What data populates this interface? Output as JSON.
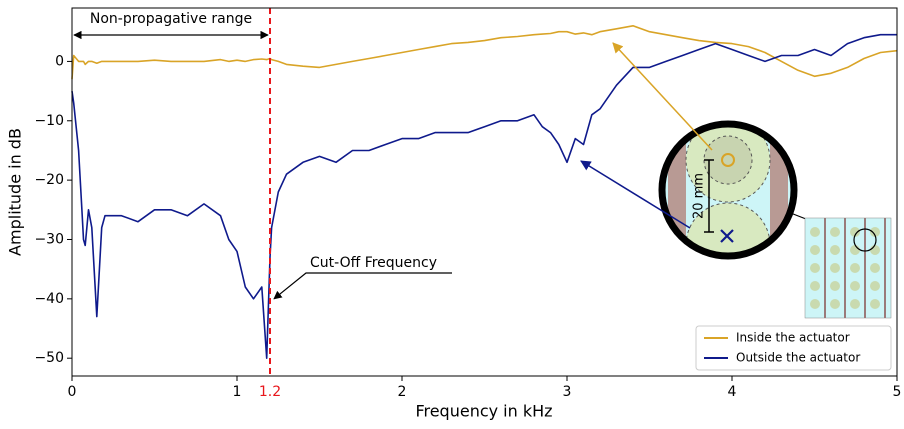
{
  "chart_data": {
    "type": "line",
    "x_label": "Frequency in kHz",
    "y_label": "Amplitude in dB",
    "xlim": [
      0,
      5
    ],
    "ylim": [
      -53,
      9
    ],
    "xticks": [
      0,
      1,
      2,
      3,
      4,
      5
    ],
    "yticks": [
      {
        "value": -50,
        "label": "−50"
      },
      {
        "value": -40,
        "label": "−40"
      },
      {
        "value": -30,
        "label": "−30"
      },
      {
        "value": -20,
        "label": "−20"
      },
      {
        "value": -10,
        "label": "−10"
      },
      0
    ],
    "cutoff": 1.2,
    "cutoff_color": "#e8161b",
    "annotations": [
      "Non-propagative range",
      "Cut-Off Frequency",
      "20 mm"
    ],
    "legend": "lower right",
    "x": [
      0,
      0.01,
      0.04,
      0.06,
      0.07,
      0.08,
      0.1,
      0.12,
      0.15,
      0.18,
      0.2,
      0.3,
      0.4,
      0.5,
      0.6,
      0.7,
      0.8,
      0.9,
      0.95,
      1.0,
      1.05,
      1.1,
      1.15,
      1.18,
      1.2,
      1.21,
      1.25,
      1.3,
      1.4,
      1.5,
      1.6,
      1.7,
      1.8,
      1.9,
      2.0,
      2.1,
      2.2,
      2.3,
      2.4,
      2.5,
      2.6,
      2.7,
      2.8,
      2.85,
      2.9,
      2.95,
      3.0,
      3.05,
      3.1,
      3.15,
      3.2,
      3.3,
      3.4,
      3.5,
      3.6,
      3.7,
      3.8,
      3.9,
      4.0,
      4.1,
      4.2,
      4.3,
      4.4,
      4.5,
      4.6,
      4.7,
      4.8,
      4.9,
      5.0
    ],
    "series": [
      {
        "name": "Inside the actuator",
        "color": "#d9a427",
        "values": [
          -3,
          1,
          0,
          0,
          0,
          -0.5,
          0,
          0,
          -0.3,
          0,
          0,
          0,
          0,
          0.2,
          0,
          0,
          0,
          0.3,
          0,
          0.2,
          0,
          0.3,
          0.4,
          0.3,
          0.5,
          0.3,
          0,
          -0.5,
          -0.8,
          -1,
          -0.5,
          0,
          0.5,
          1,
          1.5,
          2,
          2.5,
          3,
          3.2,
          3.5,
          4,
          4.2,
          4.5,
          4.6,
          4.7,
          5,
          5,
          4.6,
          4.8,
          4.5,
          5,
          5.5,
          6,
          5,
          4.5,
          4,
          3.5,
          3.2,
          3,
          2.5,
          1.5,
          0,
          -1.5,
          -2.5,
          -2,
          -1,
          0.5,
          1.5,
          1.8
        ]
      },
      {
        "name": "Outside the actuator",
        "color": "#0f1a8c",
        "values": [
          -5,
          -7,
          -15,
          -25,
          -30,
          -31,
          -25,
          -28,
          -43,
          -28,
          -26,
          -26,
          -27,
          -25,
          -25,
          -26,
          -24,
          -26,
          -30,
          -32,
          -38,
          -40,
          -38,
          -50,
          -33,
          -28,
          -22,
          -19,
          -17,
          -16,
          -17,
          -15,
          -15,
          -14,
          -13,
          -13,
          -12,
          -12,
          -12,
          -11,
          -10,
          -10,
          -9,
          -11,
          -12,
          -14,
          -17,
          -13,
          -14,
          -9,
          -8,
          -4,
          -1,
          -1,
          0,
          1,
          2,
          3,
          2,
          1,
          0,
          1,
          1,
          2,
          1,
          3,
          4,
          4.5,
          4.5
        ]
      }
    ]
  }
}
